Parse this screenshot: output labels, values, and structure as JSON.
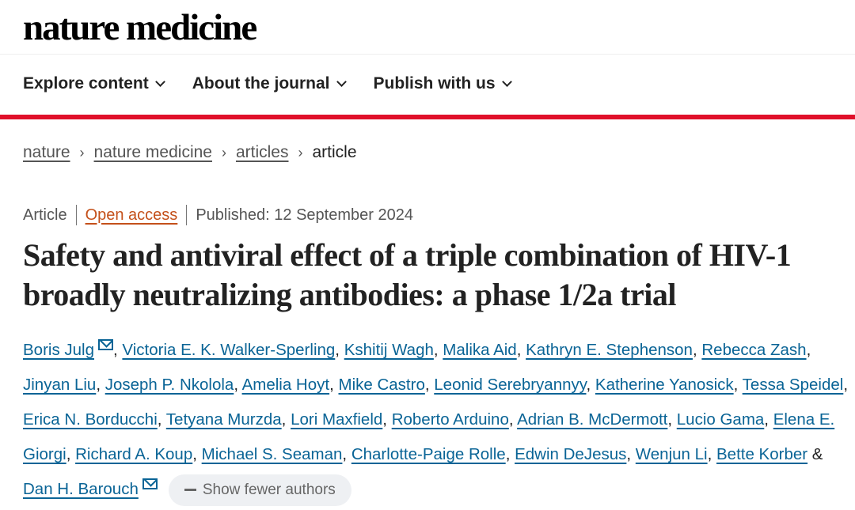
{
  "header": {
    "logo": "nature medicine"
  },
  "nav": {
    "items": [
      {
        "label": "Explore content"
      },
      {
        "label": "About the journal"
      },
      {
        "label": "Publish with us"
      }
    ]
  },
  "breadcrumb": [
    "nature",
    "nature medicine",
    "articles",
    "article"
  ],
  "meta": {
    "type": "Article",
    "access": "Open access",
    "published": "Published: 12 September 2024"
  },
  "article": {
    "title": "Safety and antiviral effect of a triple combination of HIV-1 broadly neutralizing antibodies: a phase 1/2a trial"
  },
  "authors": [
    "Boris Julg",
    "Victoria E. K. Walker-Sperling",
    "Kshitij Wagh",
    "Malika Aid",
    "Kathryn E. Stephenson",
    "Rebecca Zash",
    "Jinyan Liu",
    "Joseph P. Nkolola",
    "Amelia Hoyt",
    "Mike Castro",
    "Leonid Serebryannyy",
    "Katherine Yanosick",
    "Tessa Speidel",
    "Erica N. Borducchi",
    "Tetyana Murzda",
    "Lori Maxfield",
    "Roberto Arduino",
    "Adrian B. McDermott",
    "Lucio Gama",
    "Elena E. Giorgi",
    "Richard A. Koup",
    "Michael S. Seaman",
    "Charlotte-Paige Rolle",
    "Edwin DeJesus",
    "Wenjun Li",
    "Bette Korber",
    "Dan H. Barouch"
  ],
  "authors_ui": {
    "ampersand": "&",
    "show_fewer": "Show fewer authors"
  },
  "colors": {
    "accent_red": "#e0102a",
    "link": "#0a6496",
    "open_access": "#c4501a"
  }
}
